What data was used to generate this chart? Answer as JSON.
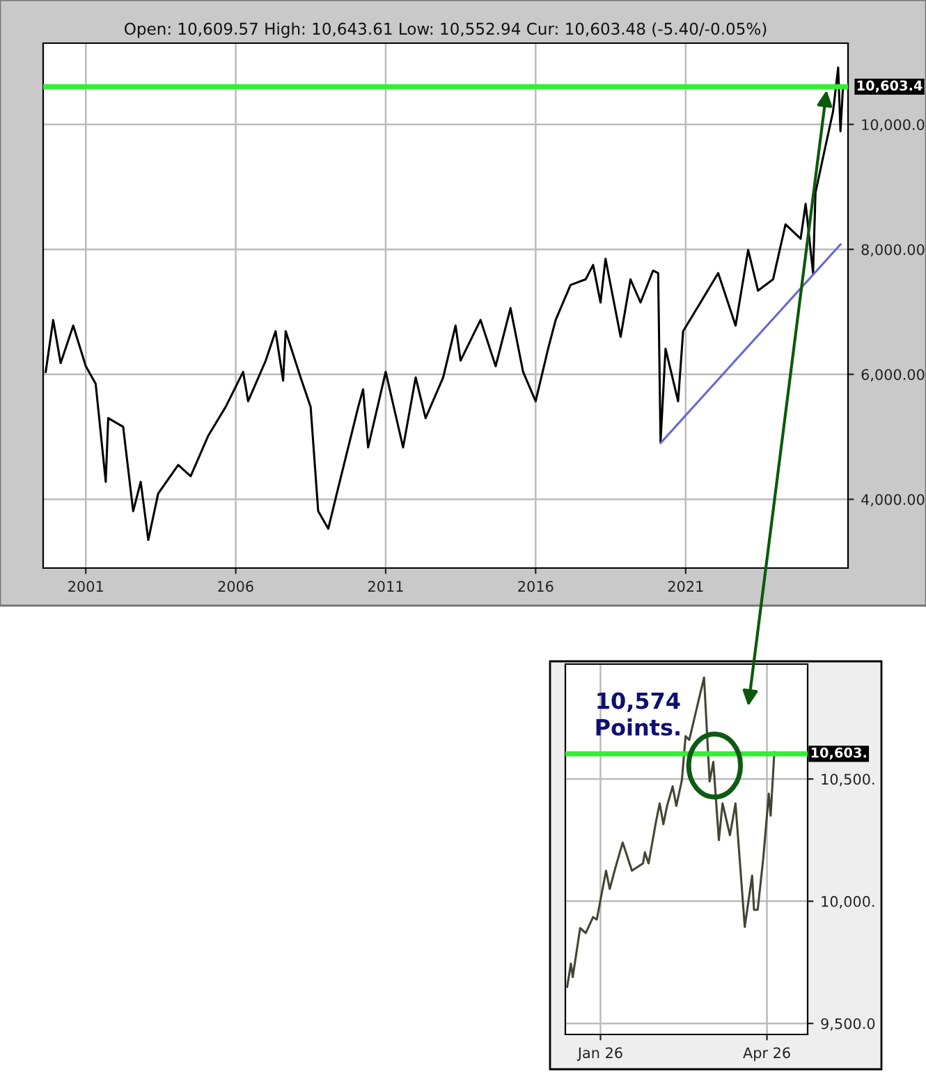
{
  "chart_data": [
    {
      "type": "line",
      "subtitle": "Open: 10,609.57 High: 10,643.61 Low: 10,552.94 Cur: 10,603.48 (-5.40/-0.05%)",
      "xlim": [
        "1999-08",
        "2026-06"
      ],
      "ylim": [
        2900,
        11300
      ],
      "xticks": [
        {
          "value": "2001-01",
          "label": "2001"
        },
        {
          "value": "2006-01",
          "label": "2006"
        },
        {
          "value": "2011-01",
          "label": "2011"
        },
        {
          "value": "2016-01",
          "label": "2016"
        },
        {
          "value": "2021-01",
          "label": "2021"
        }
      ],
      "yticks": [
        {
          "value": 4000,
          "label": "4,000.00"
        },
        {
          "value": 6000,
          "label": "6,000.00"
        },
        {
          "value": 8000,
          "label": "8,000.00"
        },
        {
          "value": 10000,
          "label": "10,000.0"
        }
      ],
      "grid": true,
      "series": [
        {
          "color": "#000000",
          "x": [
            "1999-09",
            "1999-12",
            "2000-03",
            "2000-08",
            "2001-01",
            "2001-05",
            "2001-09",
            "2001-10",
            "2002-04",
            "2002-08",
            "2002-11",
            "2003-02",
            "2003-06",
            "2004-02",
            "2004-07",
            "2005-02",
            "2005-09",
            "2006-04",
            "2006-06",
            "2007-01",
            "2007-05",
            "2007-08",
            "2007-09",
            "2008-03",
            "2008-07",
            "2008-10",
            "2009-02",
            "2009-06",
            "2010-02",
            "2010-04",
            "2010-06",
            "2011-01",
            "2011-08",
            "2012-01",
            "2012-05",
            "2012-12",
            "2013-05",
            "2013-07",
            "2014-03",
            "2014-09",
            "2015-03",
            "2015-08",
            "2016-01",
            "2016-06",
            "2016-09",
            "2017-03",
            "2017-09",
            "2017-12",
            "2018-03",
            "2018-05",
            "2018-11",
            "2019-03",
            "2019-07",
            "2019-12",
            "2020-02",
            "2020-03",
            "2020-05",
            "2020-10",
            "2020-12",
            "2021-07",
            "2022-02",
            "2022-09",
            "2023-02",
            "2023-06",
            "2023-12",
            "2024-05",
            "2024-11",
            "2025-01",
            "2025-04",
            "2025-05",
            "2025-09",
            "2025-12",
            "2026-02",
            "2026-03",
            "2026-04"
          ],
          "values": [
            6040,
            6870,
            6180,
            6780,
            6130,
            5850,
            4280,
            5300,
            5160,
            3810,
            4280,
            3350,
            4090,
            4550,
            4370,
            5020,
            5480,
            6040,
            5570,
            6220,
            6690,
            5900,
            6690,
            5950,
            5480,
            3810,
            3530,
            4180,
            5480,
            5760,
            4830,
            6040,
            4830,
            5950,
            5300,
            5950,
            6780,
            6220,
            6870,
            6130,
            7060,
            6040,
            5570,
            6410,
            6870,
            7430,
            7520,
            7750,
            7150,
            7850,
            6600,
            7520,
            7150,
            7660,
            7620,
            4920,
            6410,
            5570,
            6690,
            7150,
            7620,
            6780,
            7990,
            7340,
            7520,
            8400,
            8170,
            8730,
            7620,
            8910,
            9660,
            10210,
            10910,
            9890,
            10603
          ]
        },
        {
          "color": "#6666d8",
          "x": [
            "2020-03",
            "2026-03"
          ],
          "values": [
            4900,
            8080
          ]
        }
      ],
      "ref_lines": [
        {
          "axis": "y",
          "value": 10603.4,
          "label": "10,603.4",
          "color": "#33ee33"
        }
      ]
    },
    {
      "type": "line",
      "xlim": [
        "2025-12-13",
        "2026-04-23"
      ],
      "ylim": [
        9455,
        10970
      ],
      "xticks": [
        {
          "value": "2026-01-01",
          "label": "Jan 26"
        },
        {
          "value": "2026-04-01",
          "label": "Apr 26"
        }
      ],
      "yticks": [
        {
          "value": 9500,
          "label": "9,500.0"
        },
        {
          "value": 10000,
          "label": "10,000."
        },
        {
          "value": 10500,
          "label": "10,500."
        }
      ],
      "grid": true,
      "series": [
        {
          "color": "#444433",
          "x": [
            "2025-12-14",
            "2025-12-16",
            "2025-12-17",
            "2025-12-21",
            "2025-12-24",
            "2025-12-28",
            "2025-12-30",
            "2026-01-04",
            "2026-01-06",
            "2026-01-09",
            "2026-01-13",
            "2026-01-18",
            "2026-01-24",
            "2026-01-25",
            "2026-01-27",
            "2026-01-31",
            "2026-02-02",
            "2026-02-04",
            "2026-02-06",
            "2026-02-09",
            "2026-02-11",
            "2026-02-14",
            "2026-02-16",
            "2026-02-18",
            "2026-02-23",
            "2026-02-26",
            "2026-03-01",
            "2026-03-03",
            "2026-03-06",
            "2026-03-08",
            "2026-03-12",
            "2026-03-15",
            "2026-03-20",
            "2026-03-24",
            "2026-03-25",
            "2026-03-27",
            "2026-03-30",
            "2026-04-02",
            "2026-04-03",
            "2026-04-05"
          ],
          "values": [
            9650,
            9745,
            9690,
            9890,
            9870,
            9935,
            9925,
            10125,
            10050,
            10135,
            10240,
            10125,
            10155,
            10200,
            10155,
            10325,
            10400,
            10315,
            10390,
            10470,
            10390,
            10495,
            10675,
            10660,
            10820,
            10915,
            10490,
            10570,
            10250,
            10400,
            10270,
            10400,
            9895,
            10105,
            9965,
            9965,
            10175,
            10440,
            10350,
            10610
          ]
        }
      ],
      "ref_lines": [
        {
          "axis": "y",
          "value": 10603,
          "label": "10,603.",
          "color": "#33ee33"
        }
      ],
      "annotations": [
        "10,574\nPoints."
      ]
    }
  ]
}
